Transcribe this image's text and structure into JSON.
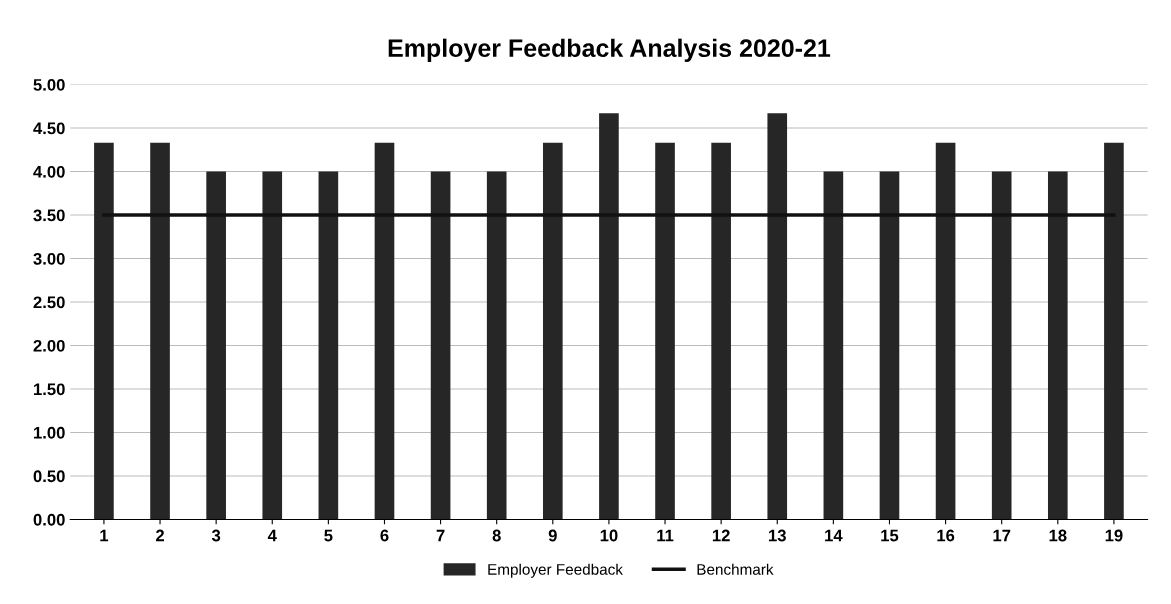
{
  "chart_data": {
    "type": "bar",
    "title": "Employer Feedback Analysis 2020-21",
    "categories": [
      "1",
      "2",
      "3",
      "4",
      "5",
      "6",
      "7",
      "8",
      "9",
      "10",
      "11",
      "12",
      "13",
      "14",
      "15",
      "16",
      "17",
      "18",
      "19"
    ],
    "series": [
      {
        "name": "Employer Feedback",
        "color": "#262626",
        "values": [
          4.33,
          4.33,
          4.0,
          4.0,
          4.0,
          4.33,
          4.0,
          4.0,
          4.33,
          4.67,
          4.33,
          4.33,
          4.67,
          4.0,
          4.0,
          4.33,
          4.0,
          4.0,
          4.33
        ]
      },
      {
        "name": "Benchmark",
        "type": "line",
        "color": "#111111",
        "values": [
          3.5,
          3.5,
          3.5,
          3.5,
          3.5,
          3.5,
          3.5,
          3.5,
          3.5,
          3.5,
          3.5,
          3.5,
          3.5,
          3.5,
          3.5,
          3.5,
          3.5,
          3.5,
          3.5
        ]
      }
    ],
    "ylim": [
      0,
      5
    ],
    "yticks": [
      {
        "value": 0,
        "label": "0.00"
      },
      {
        "value": 0.5,
        "label": "0.50"
      },
      {
        "value": 1,
        "label": "1.00"
      },
      {
        "value": 1.5,
        "label": "1.50"
      },
      {
        "value": 2,
        "label": "2.00"
      },
      {
        "value": 2.5,
        "label": "2.50"
      },
      {
        "value": 3,
        "label": "3.00"
      },
      {
        "value": 3.5,
        "label": "3.50"
      },
      {
        "value": 4,
        "label": "4.00"
      },
      {
        "value": 4.5,
        "label": "4.50"
      },
      {
        "value": 5,
        "label": "5.00"
      }
    ],
    "grid": "y",
    "legend": "bottom",
    "marker": "none"
  }
}
